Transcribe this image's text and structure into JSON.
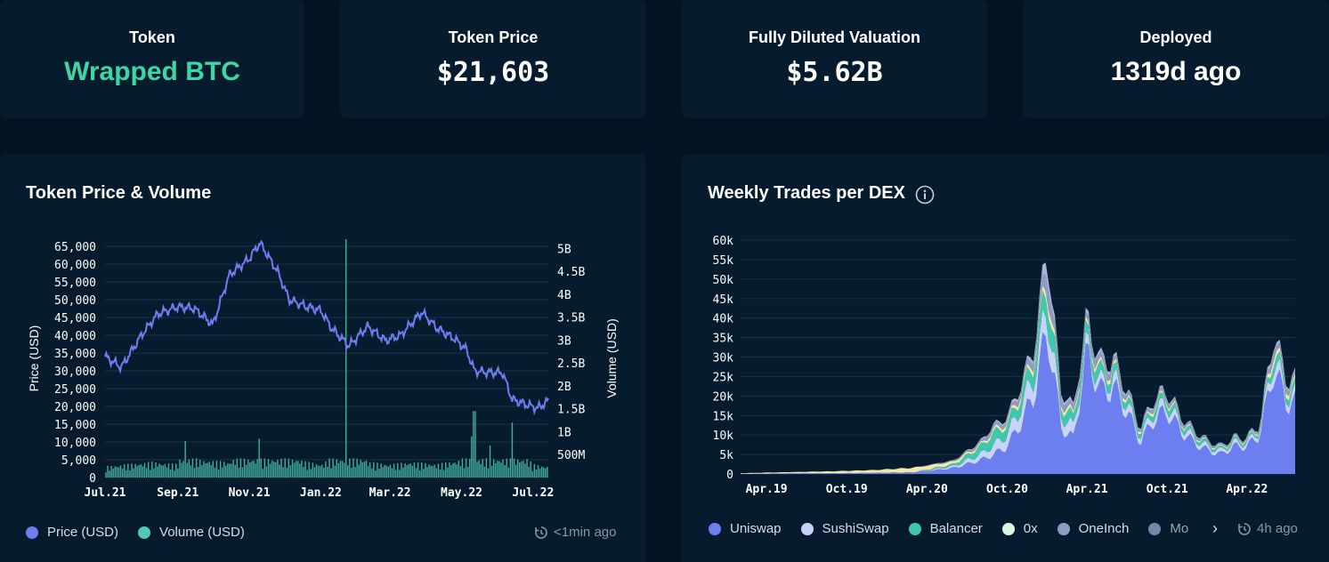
{
  "stats": {
    "token": {
      "title": "Token",
      "value": "Wrapped BTC"
    },
    "price": {
      "title": "Token Price",
      "value": "$21,603"
    },
    "fdv": {
      "title": "Fully Diluted Valuation",
      "value": "$5.62B"
    },
    "deployed": {
      "title": "Deployed",
      "value": "1319d ago"
    }
  },
  "price_panel": {
    "title": "Token Price & Volume",
    "legend": [
      {
        "label": "Price (USD)",
        "color": "#6c7ef0"
      },
      {
        "label": "Volume (USD)",
        "color": "#4fc9b4"
      }
    ],
    "updated": "<1min ago"
  },
  "dex_panel": {
    "title": "Weekly Trades per DEX",
    "legend": [
      {
        "label": "Uniswap",
        "color": "#6c7ef0"
      },
      {
        "label": "SushiSwap",
        "color": "#c7d3f7"
      },
      {
        "label": "Balancer",
        "color": "#3fc8b0"
      },
      {
        "label": "0x",
        "color": "#d9f5e6"
      },
      {
        "label": "OneInch",
        "color": "#8f9cc4"
      },
      {
        "label": "Mo",
        "color": "#a9b4dd"
      }
    ],
    "updated": "4h ago"
  },
  "chart_data": [
    {
      "type": "line",
      "title": "Token Price & Volume",
      "ylabel": "Price (USD)",
      "y2label": "Volume (USD)",
      "ylim": [
        0,
        67000
      ],
      "y2lim": [
        0,
        5200000000
      ],
      "xticks": [
        "Jul.21",
        "Sep.21",
        "Nov.21",
        "Jan.22",
        "Mar.22",
        "May.22",
        "Jul.22"
      ],
      "yticks": [
        "0",
        "5,000",
        "10,000",
        "15,000",
        "20,000",
        "25,000",
        "30,000",
        "35,000",
        "40,000",
        "45,000",
        "50,000",
        "55,000",
        "60,000",
        "65,000"
      ],
      "y2ticks": [
        "500M",
        "1B",
        "1.5B",
        "2B",
        "2.5B",
        "3B",
        "3.5B",
        "4B",
        "4.5B",
        "5B"
      ],
      "series": [
        {
          "name": "Price (USD)",
          "x": [
            "2021-07-01",
            "2021-07-15",
            "2021-08-01",
            "2021-08-15",
            "2021-09-01",
            "2021-09-15",
            "2021-10-01",
            "2021-10-15",
            "2021-11-01",
            "2021-11-10",
            "2021-11-25",
            "2021-12-05",
            "2021-12-20",
            "2022-01-01",
            "2022-01-10",
            "2022-01-25",
            "2022-02-10",
            "2022-02-25",
            "2022-03-10",
            "2022-03-28",
            "2022-04-10",
            "2022-04-25",
            "2022-05-05",
            "2022-05-12",
            "2022-05-25",
            "2022-06-05",
            "2022-06-13",
            "2022-06-25",
            "2022-07-05",
            "2022-07-14"
          ],
          "values": [
            34000,
            31000,
            40000,
            46000,
            48000,
            47500,
            43000,
            57000,
            61500,
            66000,
            58000,
            50000,
            48000,
            47000,
            42000,
            37000,
            42500,
            38500,
            40000,
            46500,
            42000,
            39000,
            36000,
            30000,
            29500,
            29500,
            22000,
            20500,
            19500,
            21600
          ]
        },
        {
          "name": "Volume (USD)",
          "x": [
            "2021-07-01",
            "2021-07-20",
            "2021-08-10",
            "2021-09-01",
            "2021-09-07",
            "2021-09-20",
            "2021-10-15",
            "2021-11-10",
            "2021-12-04",
            "2021-12-20",
            "2022-01-05",
            "2022-01-22",
            "2022-02-10",
            "2022-03-01",
            "2022-03-20",
            "2022-04-10",
            "2022-05-01",
            "2022-05-10",
            "2022-05-12",
            "2022-05-25",
            "2022-06-13",
            "2022-06-20",
            "2022-07-01",
            "2022-07-14"
          ],
          "values": [
            250000000,
            300000000,
            350000000,
            300000000,
            800000000,
            400000000,
            350000000,
            850000000,
            500000000,
            350000000,
            300000000,
            5200000000,
            350000000,
            300000000,
            350000000,
            300000000,
            400000000,
            900000000,
            1450000000,
            700000000,
            1200000000,
            600000000,
            300000000,
            250000000
          ]
        }
      ]
    },
    {
      "type": "area",
      "title": "Weekly Trades per DEX",
      "ylim": [
        0,
        60000
      ],
      "xticks": [
        "Apr.19",
        "Oct.19",
        "Apr.20",
        "Oct.20",
        "Apr.21",
        "Oct.21",
        "Apr.22"
      ],
      "yticks": [
        "0",
        "5k",
        "10k",
        "15k",
        "20k",
        "25k",
        "30k",
        "35k",
        "40k",
        "45k",
        "50k",
        "55k",
        "60k"
      ],
      "x": [
        "2019-02",
        "2019-06",
        "2019-09",
        "2019-12",
        "2020-03",
        "2020-06",
        "2020-08",
        "2020-09",
        "2020-10",
        "2020-11",
        "2020-12",
        "2021-01",
        "2021-02",
        "2021-03",
        "2021-04",
        "2021-05",
        "2021-06",
        "2021-07",
        "2021-08",
        "2021-09",
        "2021-10",
        "2021-11",
        "2021-12",
        "2022-01",
        "2022-02",
        "2022-03",
        "2022-04",
        "2022-05",
        "2022-06",
        "2022-07"
      ],
      "series": [
        {
          "name": "Uniswap",
          "values": [
            0,
            200,
            200,
            300,
            400,
            1500,
            3500,
            5000,
            7000,
            13000,
            20000,
            37000,
            12000,
            9000,
            31000,
            21000,
            22000,
            16000,
            8000,
            14000,
            16000,
            11000,
            8000,
            6000,
            5000,
            7000,
            7000,
            10000,
            27000,
            18000
          ]
        },
        {
          "name": "SushiSwap",
          "values": [
            0,
            0,
            0,
            0,
            0,
            500,
            1500,
            2500,
            3000,
            4000,
            5000,
            6000,
            3000,
            3000,
            2500,
            2000,
            2500,
            2000,
            1500,
            2000,
            2000,
            1500,
            1200,
            1000,
            900,
            1000,
            1000,
            1200,
            3000,
            2000
          ]
        },
        {
          "name": "Balancer",
          "values": [
            0,
            0,
            0,
            0,
            0,
            500,
            2000,
            3000,
            2500,
            3000,
            4000,
            6000,
            2500,
            2500,
            3000,
            2500,
            2000,
            1500,
            1000,
            1500,
            1500,
            1000,
            800,
            700,
            500,
            600,
            600,
            700,
            2000,
            1500
          ]
        },
        {
          "name": "0x",
          "values": [
            200,
            300,
            500,
            700,
            1200,
            700,
            500,
            800,
            800,
            1000,
            1200,
            2000,
            1000,
            1000,
            1200,
            1000,
            900,
            700,
            500,
            700,
            600,
            500,
            400,
            300,
            300,
            300,
            300,
            400,
            1500,
            1000
          ]
        },
        {
          "name": "OneInch",
          "values": [
            0,
            0,
            0,
            0,
            0,
            200,
            500,
            800,
            700,
            1000,
            1500,
            4000,
            1500,
            1200,
            1500,
            1500,
            1200,
            1000,
            500,
            800,
            800,
            600,
            500,
            400,
            300,
            300,
            300,
            400,
            1500,
            1000
          ]
        },
        {
          "name": "Mo",
          "values": [
            0,
            0,
            0,
            0,
            0,
            100,
            300,
            500,
            500,
            800,
            1000,
            3000,
            1000,
            800,
            1000,
            1000,
            800,
            600,
            300,
            500,
            500,
            400,
            300,
            200,
            200,
            200,
            200,
            300,
            1000,
            800
          ]
        }
      ]
    }
  ]
}
